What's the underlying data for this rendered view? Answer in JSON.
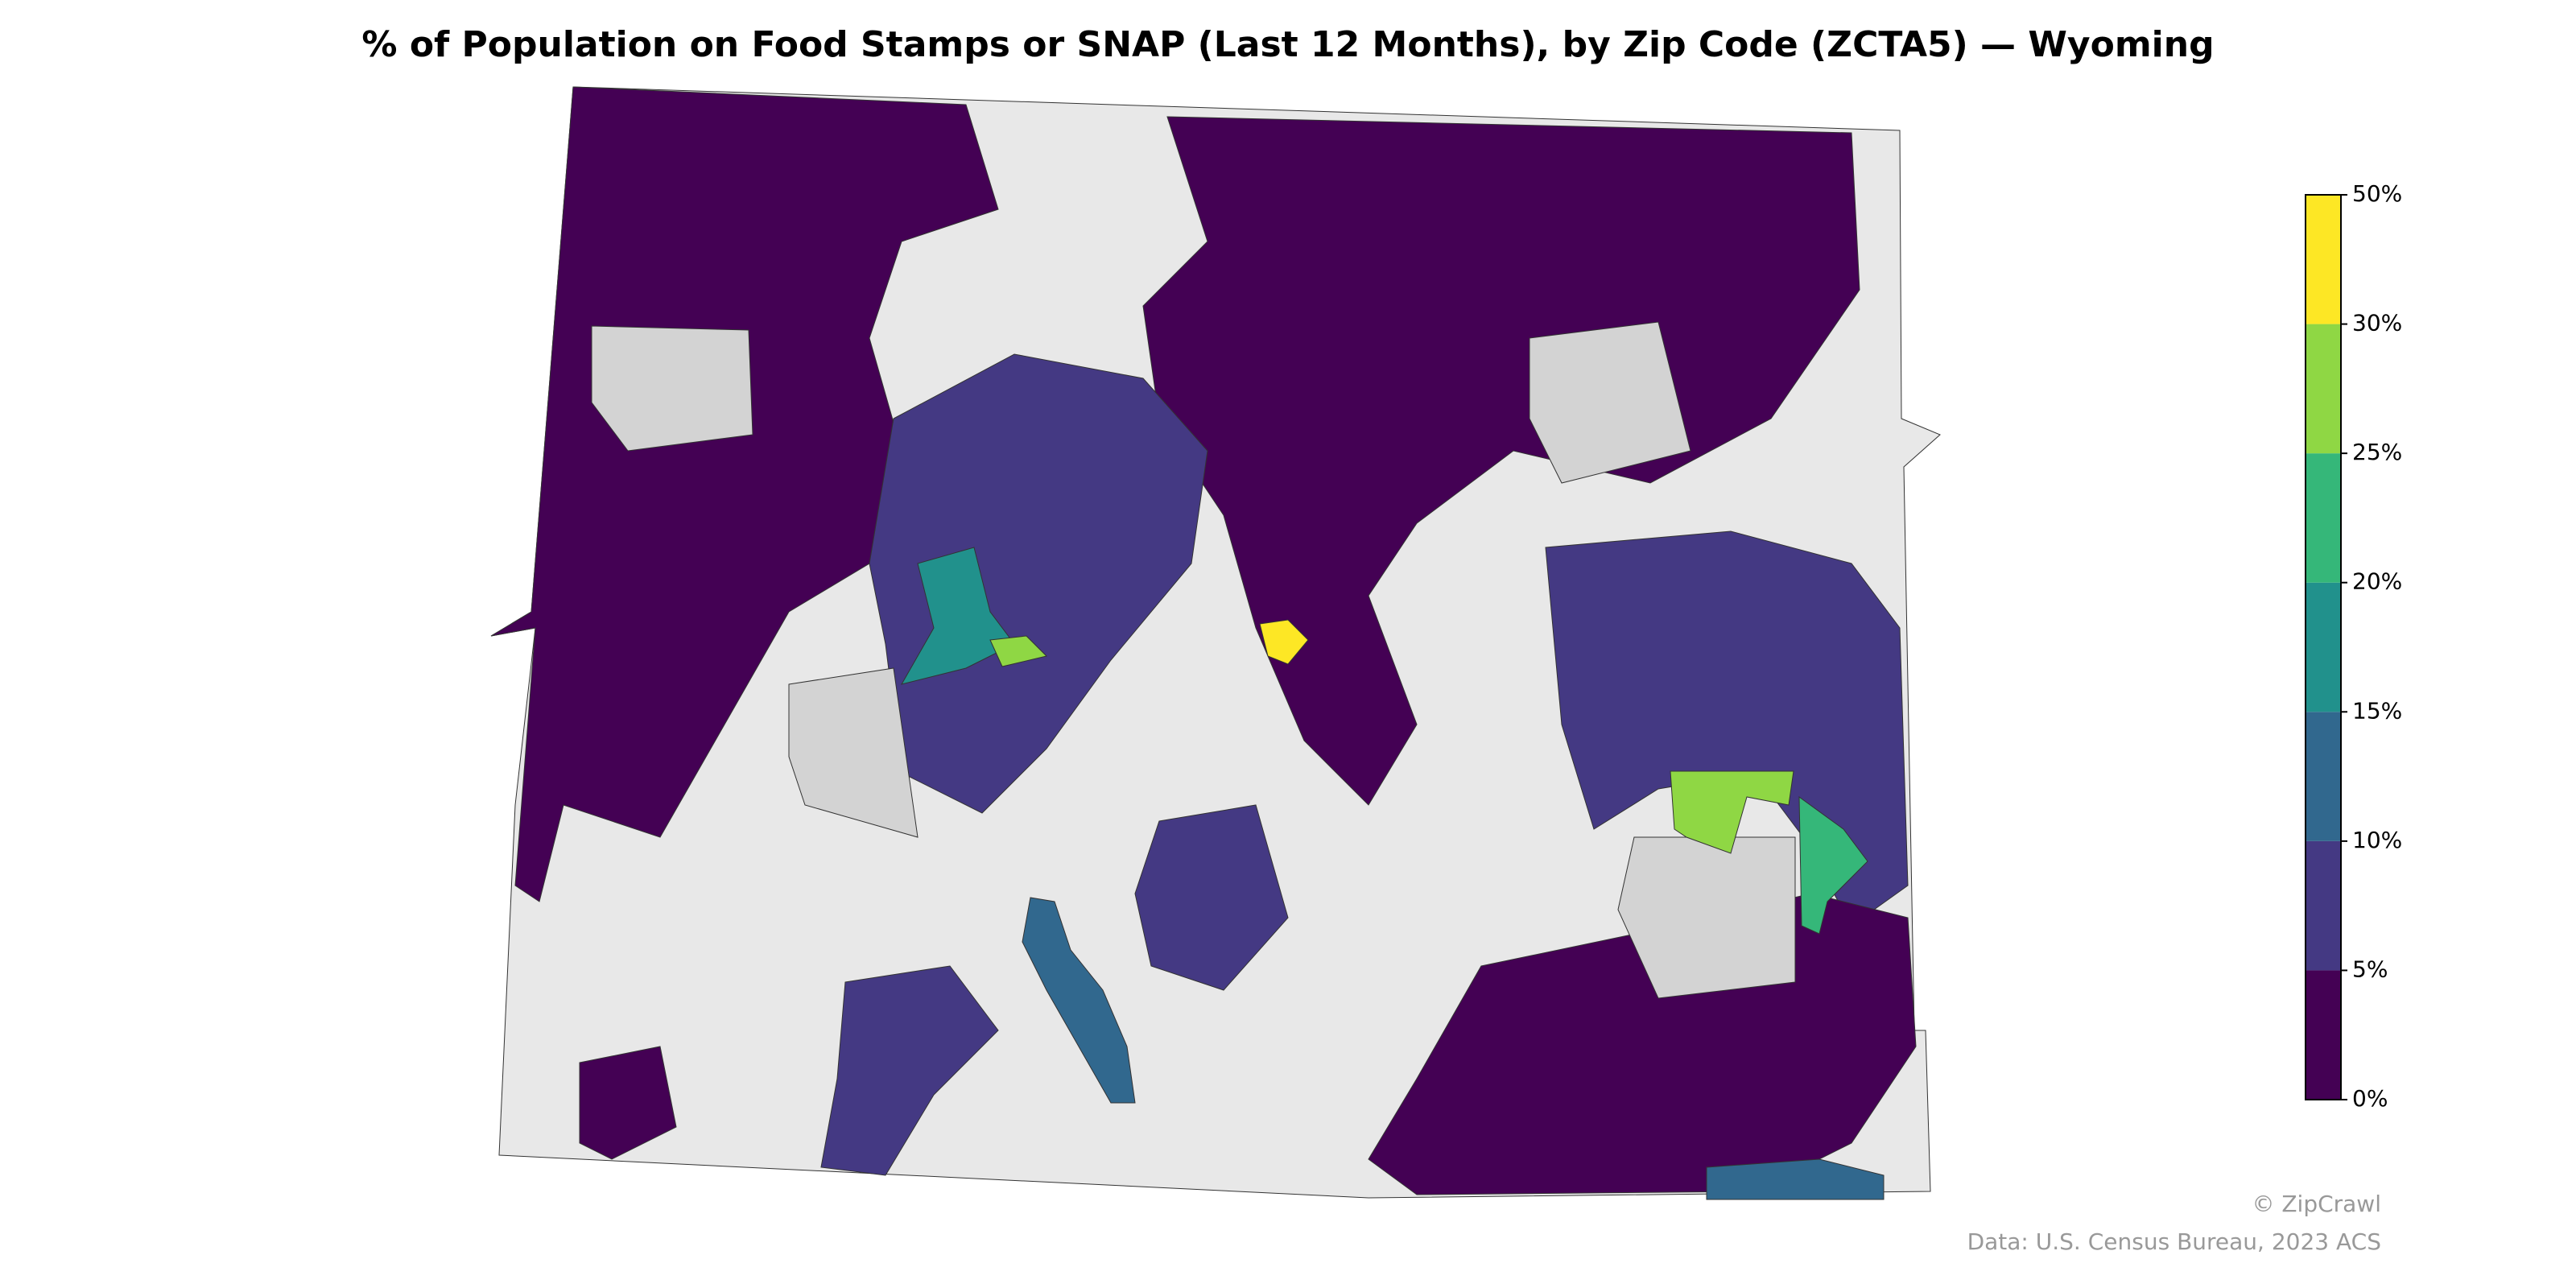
{
  "title": "% of Population on Food Stamps or SNAP (Last 12 Months), by Zip Code (ZCTA5) — Wyoming",
  "legend": {
    "ticks": [
      {
        "value": 0,
        "label": "0%"
      },
      {
        "value": 5,
        "label": "5%"
      },
      {
        "value": 10,
        "label": "10%"
      },
      {
        "value": 15,
        "label": "15%"
      },
      {
        "value": 20,
        "label": "20%"
      },
      {
        "value": 25,
        "label": "25%"
      },
      {
        "value": 30,
        "label": "30%"
      },
      {
        "value": 50,
        "label": "50%"
      }
    ],
    "colors": [
      "#440154",
      "#443983",
      "#31688e",
      "#21918c",
      "#35b779",
      "#8fd744",
      "#fde725"
    ]
  },
  "credits": [
    "© ZipCrawl",
    "Data: U.S. Census Bureau, 2023 ACS"
  ]
}
